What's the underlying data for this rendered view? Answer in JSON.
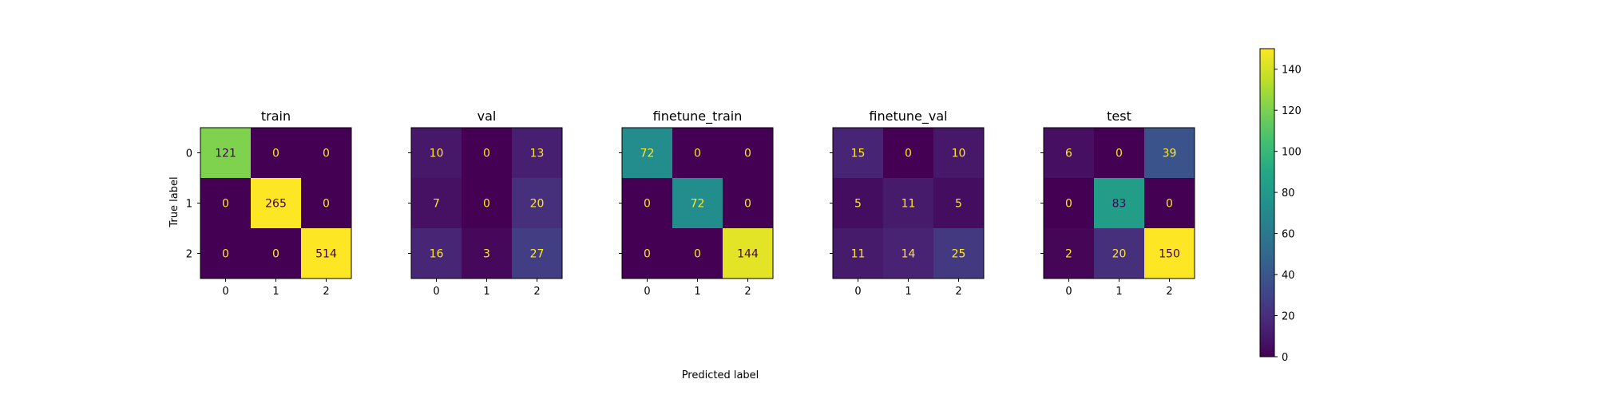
{
  "chart_data": {
    "type": "heatmap",
    "panels": [
      {
        "title": "train",
        "matrix": [
          [
            121,
            0,
            0
          ],
          [
            0,
            265,
            0
          ],
          [
            0,
            0,
            514
          ]
        ]
      },
      {
        "title": "val",
        "matrix": [
          [
            10,
            0,
            13
          ],
          [
            7,
            0,
            20
          ],
          [
            16,
            3,
            27
          ]
        ]
      },
      {
        "title": "finetune_train",
        "matrix": [
          [
            72,
            0,
            0
          ],
          [
            0,
            72,
            0
          ],
          [
            0,
            0,
            144
          ]
        ]
      },
      {
        "title": "finetune_val",
        "matrix": [
          [
            15,
            0,
            10
          ],
          [
            5,
            11,
            5
          ],
          [
            11,
            14,
            25
          ]
        ]
      },
      {
        "title": "test",
        "matrix": [
          [
            6,
            0,
            39
          ],
          [
            0,
            83,
            0
          ],
          [
            2,
            20,
            150
          ]
        ]
      }
    ],
    "categories": [
      "0",
      "1",
      "2"
    ],
    "xlabel": "Predicted label",
    "ylabel": "True label",
    "colormap": "viridis",
    "colorbar": {
      "vmin": 0,
      "vmax": 150,
      "ticks": [
        0,
        20,
        40,
        60,
        80,
        100,
        120,
        140
      ]
    },
    "text_colors": {
      "dark_cell": "#fde725",
      "light_cell": "#440154"
    }
  }
}
